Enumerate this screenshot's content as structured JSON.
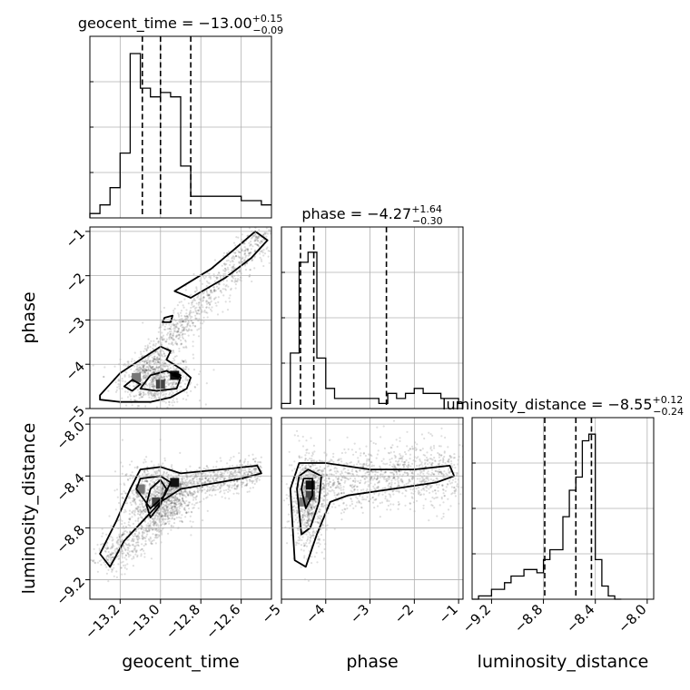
{
  "chart_data": {
    "type": "corner",
    "parameters": [
      "geocent_time",
      "phase",
      "luminosity_distance"
    ],
    "ranges": {
      "geocent_time": [
        -13.35,
        -12.45
      ],
      "phase": [
        -5.0,
        -0.9
      ],
      "luminosity_distance": [
        -9.35,
        -7.95
      ]
    },
    "ticks": {
      "geocent_time": [
        {
          "v": -13.2,
          "label": "−13.2"
        },
        {
          "v": -13.0,
          "label": "−13.0"
        },
        {
          "v": -12.8,
          "label": "−12.8"
        },
        {
          "v": -12.6,
          "label": "−12.6"
        }
      ],
      "phase": [
        {
          "v": -5,
          "label": "−5"
        },
        {
          "v": -4,
          "label": "−4"
        },
        {
          "v": -3,
          "label": "−3"
        },
        {
          "v": -2,
          "label": "−2"
        },
        {
          "v": -1,
          "label": "−1"
        }
      ],
      "luminosity_distance": [
        {
          "v": -9.2,
          "label": "−9.2"
        },
        {
          "v": -8.8,
          "label": "−8.8"
        },
        {
          "v": -8.4,
          "label": "−8.4"
        },
        {
          "v": -8.0,
          "label": "−8.0"
        }
      ]
    },
    "titles": [
      {
        "param": "geocent_time",
        "label": "geocent_time",
        "median": "−13.00",
        "plus": "+0.15",
        "minus": "−0.09"
      },
      {
        "param": "phase",
        "label": "phase",
        "median": "−4.27",
        "plus": "+1.64",
        "minus": "−0.30"
      },
      {
        "param": "luminosity_distance",
        "label": "luminosity_distance",
        "median": "−8.55",
        "plus": "+0.12",
        "minus": "−0.24"
      }
    ],
    "quantiles": {
      "geocent_time": [
        -13.09,
        -13.0,
        -12.85
      ],
      "phase": [
        -4.57,
        -4.27,
        -2.63
      ],
      "luminosity_distance": [
        -8.79,
        -8.55,
        -8.43
      ]
    },
    "histograms": {
      "geocent_time": {
        "edges": [
          -13.35,
          -13.3,
          -13.25,
          -13.2,
          -13.15,
          -13.1,
          -13.05,
          -13.0,
          -12.95,
          -12.9,
          -12.85,
          -12.8,
          -12.75,
          -12.7,
          -12.65,
          -12.6,
          -12.55,
          -12.5,
          -12.45
        ],
        "counts": [
          1,
          3,
          7,
          15,
          38,
          30,
          28,
          29,
          28,
          12,
          5,
          5,
          5,
          5,
          5,
          4,
          4,
          3
        ],
        "ymax": 42
      },
      "phase": {
        "edges": [
          -5.0,
          -4.8,
          -4.6,
          -4.4,
          -4.2,
          -4.0,
          -3.8,
          -3.6,
          -3.4,
          -3.2,
          -3.0,
          -2.8,
          -2.6,
          -2.4,
          -2.2,
          -2.0,
          -1.8,
          -1.6,
          -1.4,
          -1.2,
          -1.0,
          -0.9
        ],
        "counts": [
          1,
          11,
          29,
          31,
          10,
          4,
          2,
          2,
          2,
          2,
          2,
          1,
          3,
          2,
          3,
          4,
          3,
          3,
          2,
          2,
          1
        ],
        "ymax": 36
      },
      "luminosity_distance": {
        "edges": [
          -9.35,
          -9.3,
          -9.25,
          -9.2,
          -9.15,
          -9.1,
          -9.05,
          -9.0,
          -8.95,
          -8.9,
          -8.85,
          -8.8,
          -8.75,
          -8.7,
          -8.65,
          -8.6,
          -8.55,
          -8.5,
          -8.45,
          -8.4,
          -8.35,
          -8.3,
          -8.25,
          -8.2
        ],
        "counts": [
          0,
          1,
          1,
          3,
          3,
          5,
          7,
          7,
          9,
          9,
          8,
          12,
          15,
          15,
          25,
          33,
          37,
          48,
          50,
          12,
          4,
          1,
          0
        ],
        "ymax": 55
      }
    },
    "contours": {
      "phase_vs_geocent_time": [
        [
          [
            -13.3,
            -4.7
          ],
          [
            -13.3,
            -4.8
          ],
          [
            -13.2,
            -4.85
          ],
          [
            -13.05,
            -4.85
          ],
          [
            -12.95,
            -4.75
          ],
          [
            -12.87,
            -4.55
          ],
          [
            -12.85,
            -4.3
          ],
          [
            -12.9,
            -4.1
          ],
          [
            -12.97,
            -3.9
          ],
          [
            -12.95,
            -3.7
          ],
          [
            -13.0,
            -3.6
          ],
          [
            -13.1,
            -3.9
          ],
          [
            -13.2,
            -4.2
          ],
          [
            -13.25,
            -4.45
          ],
          [
            -13.3,
            -4.7
          ]
        ],
        [
          [
            -12.93,
            -2.35
          ],
          [
            -12.75,
            -1.85
          ],
          [
            -12.62,
            -1.35
          ],
          [
            -12.53,
            -1.0
          ],
          [
            -12.47,
            -1.2
          ],
          [
            -12.55,
            -1.6
          ],
          [
            -12.68,
            -2.05
          ],
          [
            -12.85,
            -2.5
          ],
          [
            -12.93,
            -2.35
          ]
        ],
        [
          [
            -13.1,
            -4.55
          ],
          [
            -13.02,
            -4.6
          ],
          [
            -12.92,
            -4.55
          ],
          [
            -12.9,
            -4.3
          ],
          [
            -12.97,
            -4.15
          ],
          [
            -13.05,
            -4.25
          ],
          [
            -13.1,
            -4.55
          ]
        ],
        [
          [
            -13.18,
            -4.5
          ],
          [
            -13.14,
            -4.6
          ],
          [
            -13.1,
            -4.45
          ],
          [
            -13.14,
            -4.35
          ],
          [
            -13.18,
            -4.5
          ]
        ],
        [
          [
            -12.99,
            -3.05
          ],
          [
            -12.95,
            -3.05
          ],
          [
            -12.94,
            -2.9
          ],
          [
            -12.98,
            -2.95
          ],
          [
            -12.99,
            -3.05
          ]
        ],
        [
          [
            -12.94,
            -4.25
          ],
          [
            -12.91,
            -4.3
          ],
          [
            -12.9,
            -4.25
          ],
          [
            -12.93,
            -4.2
          ],
          [
            -12.94,
            -4.25
          ]
        ]
      ],
      "luminosity_distance_vs_geocent_time": [
        [
          [
            -13.3,
            -9.0
          ],
          [
            -13.25,
            -9.1
          ],
          [
            -13.18,
            -8.9
          ],
          [
            -13.0,
            -8.6
          ],
          [
            -12.9,
            -8.5
          ],
          [
            -12.6,
            -8.42
          ],
          [
            -12.5,
            -8.38
          ],
          [
            -12.52,
            -8.32
          ],
          [
            -12.7,
            -8.35
          ],
          [
            -12.9,
            -8.38
          ],
          [
            -13.0,
            -8.33
          ],
          [
            -13.1,
            -8.35
          ],
          [
            -13.15,
            -8.5
          ],
          [
            -13.22,
            -8.75
          ],
          [
            -13.3,
            -9.0
          ]
        ],
        [
          [
            -13.12,
            -8.5
          ],
          [
            -13.05,
            -8.65
          ],
          [
            -12.98,
            -8.55
          ],
          [
            -12.95,
            -8.45
          ],
          [
            -13.0,
            -8.4
          ],
          [
            -13.1,
            -8.42
          ],
          [
            -13.12,
            -8.5
          ]
        ],
        [
          [
            -13.05,
            -8.72
          ],
          [
            -13.0,
            -8.62
          ],
          [
            -12.97,
            -8.5
          ],
          [
            -13.0,
            -8.43
          ],
          [
            -13.05,
            -8.5
          ],
          [
            -13.07,
            -8.62
          ],
          [
            -13.05,
            -8.72
          ]
        ]
      ],
      "luminosity_distance_vs_phase": [
        [
          [
            -4.8,
            -8.5
          ],
          [
            -4.7,
            -9.05
          ],
          [
            -4.45,
            -9.1
          ],
          [
            -4.2,
            -8.85
          ],
          [
            -3.9,
            -8.6
          ],
          [
            -3.5,
            -8.55
          ],
          [
            -2.5,
            -8.5
          ],
          [
            -1.5,
            -8.45
          ],
          [
            -1.1,
            -8.4
          ],
          [
            -1.2,
            -8.32
          ],
          [
            -2.0,
            -8.35
          ],
          [
            -3.0,
            -8.35
          ],
          [
            -4.0,
            -8.3
          ],
          [
            -4.6,
            -8.3
          ],
          [
            -4.8,
            -8.5
          ]
        ],
        [
          [
            -4.65,
            -8.5
          ],
          [
            -4.55,
            -8.85
          ],
          [
            -4.35,
            -8.8
          ],
          [
            -4.15,
            -8.6
          ],
          [
            -4.1,
            -8.4
          ],
          [
            -4.4,
            -8.35
          ],
          [
            -4.6,
            -8.4
          ],
          [
            -4.65,
            -8.5
          ]
        ],
        [
          [
            -4.55,
            -8.5
          ],
          [
            -4.45,
            -8.65
          ],
          [
            -4.3,
            -8.55
          ],
          [
            -4.3,
            -8.42
          ],
          [
            -4.5,
            -8.42
          ],
          [
            -4.55,
            -8.5
          ]
        ]
      ]
    },
    "density_peaks": {
      "phase_vs_geocent_time": [
        [
          -12.93,
          -4.25
        ],
        [
          -13.0,
          -4.45
        ],
        [
          -13.12,
          -4.3
        ]
      ],
      "luminosity_distance_vs_geocent_time": [
        [
          -12.93,
          -8.45
        ],
        [
          -13.02,
          -8.6
        ],
        [
          -13.1,
          -8.5
        ]
      ],
      "luminosity_distance_vs_phase": [
        [
          -4.35,
          -8.47
        ],
        [
          -4.35,
          -8.55
        ],
        [
          -4.5,
          -8.6
        ]
      ]
    }
  }
}
